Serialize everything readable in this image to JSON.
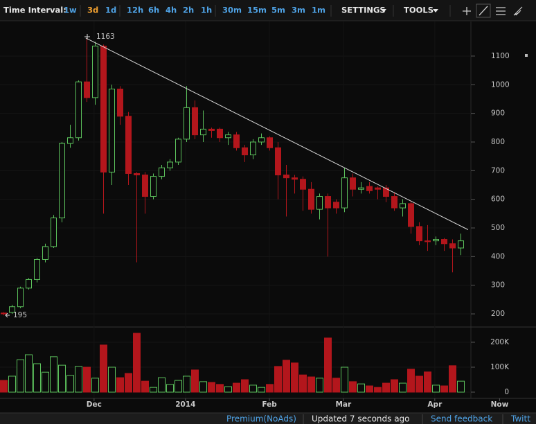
{
  "toolbar": {
    "label": "Time Interval:",
    "intervals": [
      "1w",
      "3d",
      "1d",
      "12h",
      "6h",
      "4h",
      "2h",
      "1h",
      "30m",
      "15m",
      "5m",
      "3m",
      "1m"
    ],
    "menus": [
      "SETTINGS",
      "TOOLS"
    ]
  },
  "chart_data": {
    "type": "candlestick",
    "open": [
      203,
      205,
      225,
      290,
      320,
      390,
      435,
      535,
      795,
      815,
      1010,
      955,
      1135,
      695,
      985,
      890,
      690,
      685,
      610,
      680,
      710,
      730,
      810,
      920,
      825,
      845,
      845,
      815,
      825,
      780,
      755,
      800,
      815,
      780,
      685,
      675,
      670,
      635,
      565,
      610,
      590,
      570,
      675,
      635,
      645,
      640,
      640,
      610,
      570,
      585,
      505,
      455,
      455,
      460,
      445,
      430
    ],
    "high": [
      206,
      232,
      295,
      325,
      395,
      445,
      545,
      800,
      860,
      1015,
      1163,
      1150,
      1140,
      1000,
      995,
      905,
      695,
      695,
      690,
      720,
      740,
      815,
      995,
      945,
      910,
      850,
      850,
      835,
      835,
      790,
      810,
      830,
      820,
      800,
      720,
      685,
      680,
      660,
      620,
      620,
      600,
      710,
      690,
      660,
      660,
      645,
      650,
      625,
      600,
      595,
      520,
      510,
      470,
      465,
      460,
      480
    ],
    "low": [
      195,
      200,
      220,
      285,
      310,
      380,
      430,
      520,
      780,
      805,
      940,
      930,
      550,
      650,
      860,
      650,
      380,
      550,
      600,
      670,
      700,
      720,
      800,
      810,
      800,
      815,
      800,
      790,
      770,
      730,
      740,
      790,
      770,
      600,
      540,
      620,
      560,
      550,
      530,
      400,
      550,
      555,
      610,
      620,
      620,
      600,
      590,
      560,
      540,
      480,
      440,
      420,
      440,
      420,
      345,
      405
    ],
    "close": [
      200,
      225,
      290,
      320,
      390,
      435,
      535,
      795,
      815,
      1010,
      955,
      1135,
      695,
      985,
      890,
      690,
      685,
      610,
      680,
      710,
      730,
      810,
      920,
      825,
      845,
      840,
      815,
      825,
      780,
      755,
      800,
      815,
      780,
      685,
      675,
      670,
      635,
      565,
      610,
      570,
      570,
      675,
      635,
      640,
      630,
      635,
      610,
      570,
      585,
      505,
      455,
      452,
      460,
      445,
      430,
      455
    ],
    "volume": [
      47000,
      64000,
      130000,
      150000,
      114000,
      80000,
      142000,
      108000,
      67000,
      103000,
      100000,
      56000,
      189000,
      100000,
      58000,
      75000,
      236000,
      44000,
      19000,
      58000,
      31000,
      47000,
      64000,
      89000,
      42000,
      39000,
      31000,
      22000,
      36000,
      50000,
      28000,
      19000,
      31000,
      103000,
      128000,
      117000,
      69000,
      61000,
      56000,
      217000,
      56000,
      100000,
      42000,
      33000,
      25000,
      19000,
      36000,
      50000,
      36000,
      92000,
      64000,
      81000,
      28000,
      25000,
      106000,
      44000
    ],
    "up_color": "#5cc25c",
    "down_color": "#b3161c",
    "trend_color": "#d8d8d8",
    "grid": true,
    "xlim": [
      -0.42,
      64.08
    ],
    "xticks": [
      {
        "value": 10.9,
        "label": "Dec"
      },
      {
        "value": 21.9,
        "label": "2014"
      },
      {
        "value": 32,
        "label": "Feb"
      },
      {
        "value": 40.9,
        "label": "Mar"
      },
      {
        "value": 51.9,
        "label": "Apr"
      },
      {
        "value": 59.7,
        "label": "Now"
      }
    ],
    "ylim": [
      156.6,
      1220.8
    ],
    "yticks": [
      200,
      300,
      400,
      500,
      600,
      700,
      800,
      900,
      1000,
      1100
    ],
    "y2lim": [
      -25000,
      258333
    ],
    "y2ticks": [
      0,
      {
        "value": 100000,
        "label": "100K"
      },
      {
        "value": 200000,
        "label": "200K"
      }
    ],
    "trendline": {
      "x": [
        9.9,
        55.9
      ],
      "y": [
        1163,
        494
      ]
    }
  },
  "footer": [
    "Premium(NoAds)",
    "Updated 7 seconds ago",
    "Send feedback",
    "Twitt"
  ]
}
